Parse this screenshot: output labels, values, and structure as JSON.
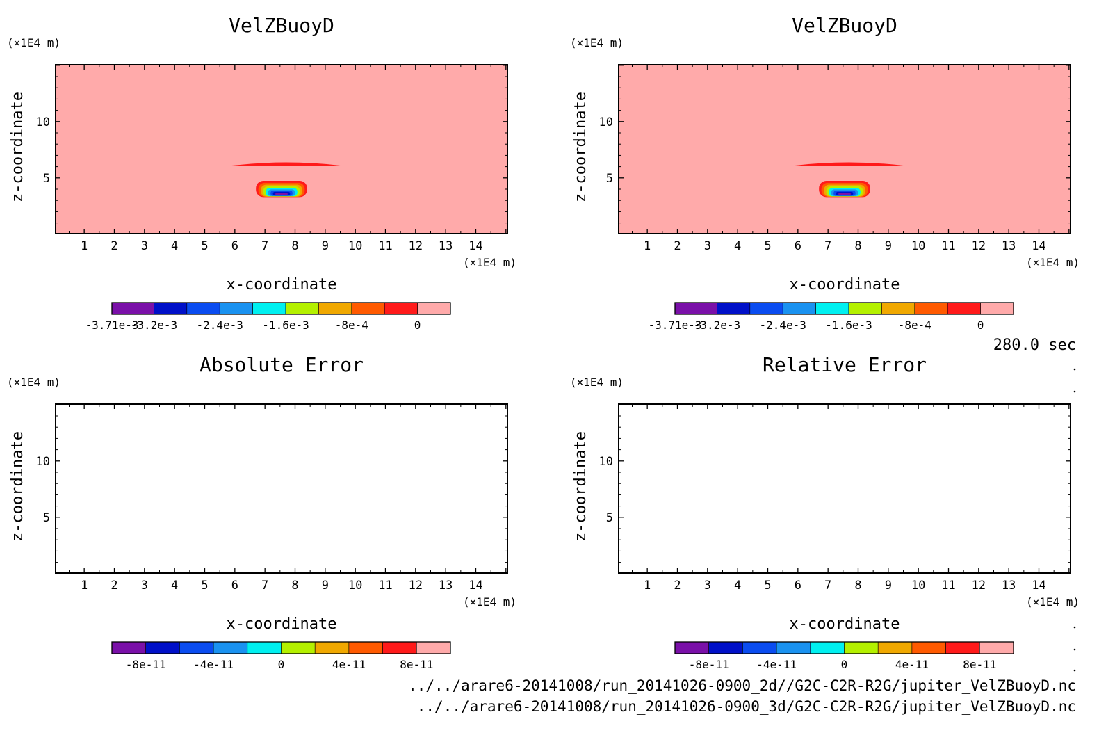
{
  "time_label": "280.0 sec",
  "file_paths": [
    "../../arare6-20141008/run_20141026-0900_2d//G2C-C2R-R2G/jupiter_VelZBuoyD.nc",
    "../../arare6-20141008/run_20141026-0900_3d/G2C-C2R-R2G/jupiter_VelZBuoyD.nc"
  ],
  "palette": [
    "#7a10a8",
    "#0010c8",
    "#0a4cf0",
    "#1a92f0",
    "#00f0f0",
    "#b4f000",
    "#f0a800",
    "#ff5a00",
    "#ff1a1a",
    "#ffaaaa"
  ],
  "chart_data": [
    {
      "type": "heatmap",
      "title": "VelZBuoyD",
      "xlabel": "x-coordinate",
      "ylabel": "z-coordinate",
      "x_unit": "(×1E4 m)",
      "y_unit": "(×1E4 m)",
      "x_ticks": [
        "1",
        "2",
        "3",
        "4",
        "5",
        "6",
        "7",
        "8",
        "9",
        "10",
        "11",
        "12",
        "13",
        "14"
      ],
      "y_ticks": [
        "5",
        "10"
      ],
      "xlim": [
        0.05,
        15.05
      ],
      "ylim": [
        0.05,
        15.05
      ],
      "background_level": 0,
      "colorbar_levels": [
        -0.00371,
        -0.0032,
        -0.0028,
        -0.0024,
        -0.002,
        -0.0016,
        -0.0012,
        -0.0008,
        -0.0004,
        0,
        0.0004
      ],
      "colorbar_labels": [
        {
          "text": "-3.71e-3",
          "value": -0.00371
        },
        {
          "text": "-3.2e-3",
          "value": -0.0032
        },
        {
          "text": "-2.4e-3",
          "value": -0.0024
        },
        {
          "text": "-1.6e-3",
          "value": -0.0016
        },
        {
          "text": "-8e-4",
          "value": -0.0008
        },
        {
          "text": "0",
          "value": 0
        }
      ],
      "features": [
        {
          "kind": "band",
          "x_range": [
            5.9,
            9.5
          ],
          "z_range": [
            6.1,
            6.4
          ],
          "value_band": 8
        },
        {
          "kind": "core",
          "x_center": 7.55,
          "z_center": 4.1,
          "x_halfwidth": 0.85,
          "z_halfheight": 0.8,
          "min_band": 0
        }
      ]
    },
    {
      "type": "heatmap",
      "title": "VelZBuoyD",
      "xlabel": "x-coordinate",
      "ylabel": "z-coordinate",
      "x_unit": "(×1E4 m)",
      "y_unit": "(×1E4 m)",
      "x_ticks": [
        "1",
        "2",
        "3",
        "4",
        "5",
        "6",
        "7",
        "8",
        "9",
        "10",
        "11",
        "12",
        "13",
        "14"
      ],
      "y_ticks": [
        "5",
        "10"
      ],
      "xlim": [
        0.05,
        15.05
      ],
      "ylim": [
        0.05,
        15.05
      ],
      "background_level": 0,
      "colorbar_levels": [
        -0.00371,
        -0.0032,
        -0.0028,
        -0.0024,
        -0.002,
        -0.0016,
        -0.0012,
        -0.0008,
        -0.0004,
        0,
        0.0004
      ],
      "colorbar_labels": [
        {
          "text": "-3.71e-3",
          "value": -0.00371
        },
        {
          "text": "-3.2e-3",
          "value": -0.0032
        },
        {
          "text": "-2.4e-3",
          "value": -0.0024
        },
        {
          "text": "-1.6e-3",
          "value": -0.0016
        },
        {
          "text": "-8e-4",
          "value": -0.0008
        },
        {
          "text": "0",
          "value": 0
        }
      ],
      "features": [
        {
          "kind": "band",
          "x_range": [
            5.9,
            9.5
          ],
          "z_range": [
            6.1,
            6.4
          ],
          "value_band": 8
        },
        {
          "kind": "core",
          "x_center": 7.55,
          "z_center": 4.1,
          "x_halfwidth": 0.85,
          "z_halfheight": 0.8,
          "min_band": 0
        }
      ]
    },
    {
      "type": "heatmap",
      "title": "Absolute Error",
      "xlabel": "x-coordinate",
      "ylabel": "z-coordinate",
      "x_unit": "(×1E4 m)",
      "y_unit": "(×1E4 m)",
      "x_ticks": [
        "1",
        "2",
        "3",
        "4",
        "5",
        "6",
        "7",
        "8",
        "9",
        "10",
        "11",
        "12",
        "13",
        "14"
      ],
      "y_ticks": [
        "5",
        "10"
      ],
      "xlim": [
        0.05,
        15.05
      ],
      "ylim": [
        0.05,
        15.05
      ],
      "background_level": null,
      "colorbar_levels": [
        -1e-10,
        -8e-11,
        -6e-11,
        -4e-11,
        -2e-11,
        0,
        2e-11,
        4e-11,
        6e-11,
        8e-11,
        1e-10
      ],
      "colorbar_labels": [
        {
          "text": "-8e-11",
          "value": -8e-11
        },
        {
          "text": "-4e-11",
          "value": -4e-11
        },
        {
          "text": "0",
          "value": 0
        },
        {
          "text": "4e-11",
          "value": 4e-11
        },
        {
          "text": "8e-11",
          "value": 8e-11
        }
      ],
      "features": []
    },
    {
      "type": "heatmap",
      "title": "Relative Error",
      "xlabel": "x-coordinate",
      "ylabel": "z-coordinate",
      "x_unit": "(×1E4 m)",
      "y_unit": "(×1E4 m)",
      "x_ticks": [
        "1",
        "2",
        "3",
        "4",
        "5",
        "6",
        "7",
        "8",
        "9",
        "10",
        "11",
        "12",
        "13",
        "14"
      ],
      "y_ticks": [
        "5",
        "10"
      ],
      "xlim": [
        0.05,
        15.05
      ],
      "ylim": [
        0.05,
        15.05
      ],
      "background_level": null,
      "colorbar_levels": [
        -1e-10,
        -8e-11,
        -6e-11,
        -4e-11,
        -2e-11,
        0,
        2e-11,
        4e-11,
        6e-11,
        8e-11,
        1e-10
      ],
      "colorbar_labels": [
        {
          "text": "-8e-11",
          "value": -8e-11
        },
        {
          "text": "-4e-11",
          "value": -4e-11
        },
        {
          "text": "0",
          "value": 0
        },
        {
          "text": "4e-11",
          "value": 4e-11
        },
        {
          "text": "8e-11",
          "value": 8e-11
        }
      ],
      "features": []
    }
  ]
}
